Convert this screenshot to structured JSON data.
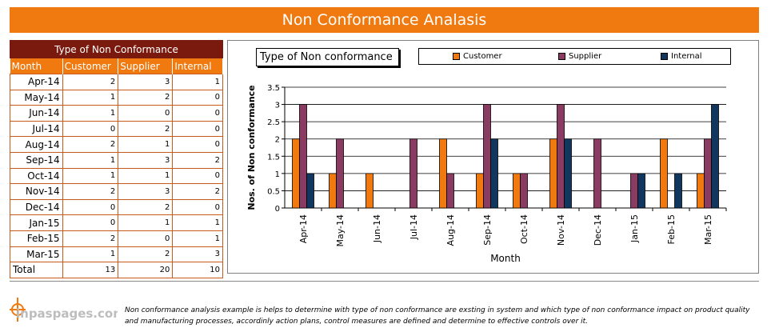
{
  "header": {
    "title": "Non Conformance Analasis"
  },
  "table": {
    "group_header": "Type of Non Conformance",
    "columns": [
      "Month",
      "Customer",
      "Supplier",
      "Internal"
    ],
    "rows": [
      [
        "Apr-14",
        "2",
        "3",
        "1"
      ],
      [
        "May-14",
        "1",
        "2",
        "0"
      ],
      [
        "Jun-14",
        "1",
        "0",
        "0"
      ],
      [
        "Jul-14",
        "0",
        "2",
        "0"
      ],
      [
        "Aug-14",
        "2",
        "1",
        "0"
      ],
      [
        "Sep-14",
        "1",
        "3",
        "2"
      ],
      [
        "Oct-14",
        "1",
        "1",
        "0"
      ],
      [
        "Nov-14",
        "2",
        "3",
        "2"
      ],
      [
        "Dec-14",
        "0",
        "2",
        "0"
      ],
      [
        "Jan-15",
        "0",
        "1",
        "1"
      ],
      [
        "Feb-15",
        "2",
        "0",
        "1"
      ],
      [
        "Mar-15",
        "1",
        "2",
        "3"
      ]
    ],
    "total_row": [
      "Total",
      "13",
      "20",
      "10"
    ]
  },
  "chart_data": {
    "type": "bar",
    "title": "Type of Non conformance",
    "xlabel": "Month",
    "ylabel": "Nos. of Non conformance",
    "categories": [
      "Apr-14",
      "May-14",
      "Jun-14",
      "Jul-14",
      "Aug-14",
      "Sep-14",
      "Oct-14",
      "Nov-14",
      "Dec-14",
      "Jan-15",
      "Feb-15",
      "Mar-15"
    ],
    "series": [
      {
        "name": "Customer",
        "values": [
          2,
          1,
          1,
          0,
          2,
          1,
          1,
          2,
          0,
          0,
          2,
          1
        ],
        "color": "#f07a10"
      },
      {
        "name": "Supplier",
        "values": [
          3,
          2,
          0,
          2,
          1,
          3,
          1,
          3,
          2,
          1,
          0,
          2
        ],
        "color": "#8b3a62"
      },
      {
        "name": "Internal",
        "values": [
          1,
          0,
          0,
          0,
          0,
          2,
          0,
          2,
          0,
          1,
          1,
          3
        ],
        "color": "#12375f"
      }
    ],
    "ylim": [
      0,
      3.5
    ],
    "yticks": [
      "0",
      "0.5",
      "1",
      "1.5",
      "2",
      "2.5",
      "3",
      "3.5"
    ],
    "grid": true,
    "legend_position": "top"
  },
  "footer": {
    "logo_text": "inpaspages.com",
    "note": "Non conformance analysis example is helps to determine with type of non conformance are exsting in system and which type of non conformance impact on product quality and manufacturing processes, accordinly action plans, control measures are defined and determine to effective controls over it."
  }
}
